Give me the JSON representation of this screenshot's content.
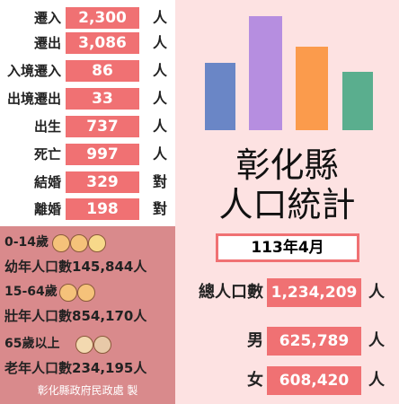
{
  "flows": [
    {
      "label": "遷入",
      "value": "2,300",
      "unit": "人"
    },
    {
      "label": "遷出",
      "value": "3,086",
      "unit": "人"
    },
    {
      "label": "入境遷入",
      "value": "86",
      "unit": "人"
    },
    {
      "label": "出境遷出",
      "value": "33",
      "unit": "人"
    },
    {
      "label": "出生",
      "value": "737",
      "unit": "人"
    },
    {
      "label": "死亡",
      "value": "997",
      "unit": "人"
    },
    {
      "label": "結婚",
      "value": "329",
      "unit": "對"
    },
    {
      "label": "離婚",
      "value": "198",
      "unit": "對"
    }
  ],
  "age_groups": [
    {
      "range": "0-14歲",
      "label": "幼年人口數",
      "value": "145,844",
      "unit": "人"
    },
    {
      "range": "15-64歲",
      "label": "壯年人口數",
      "value": "854,170",
      "unit": "人"
    },
    {
      "range": "65歲以上",
      "label": "老年人口數",
      "value": "234,195",
      "unit": "人"
    }
  ],
  "footer": "彰化縣政府民政處 製",
  "title_lines": [
    "彰化縣",
    "人口統計"
  ],
  "period": "113年4月",
  "totals": [
    {
      "label": "總人口數",
      "value": "1,234,209",
      "unit": "人"
    },
    {
      "label": "男",
      "value": "625,789",
      "unit": "人"
    },
    {
      "label": "女",
      "value": "608,420",
      "unit": "人"
    }
  ]
}
